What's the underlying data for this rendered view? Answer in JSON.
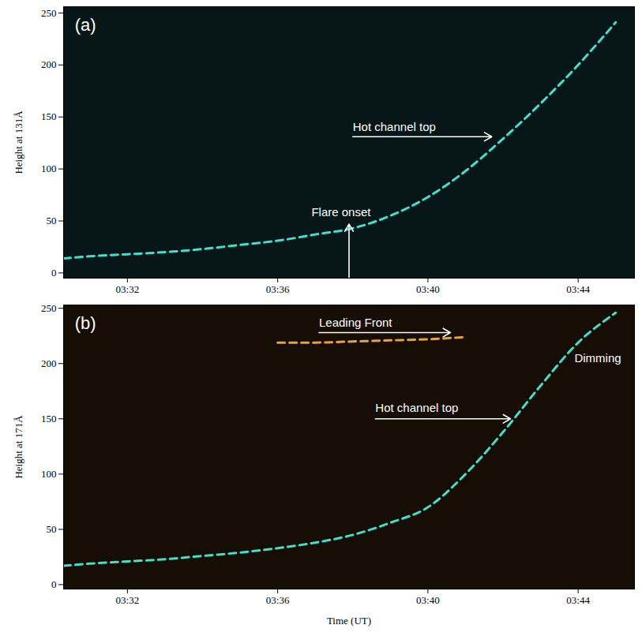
{
  "chart_data": [
    {
      "type": "line",
      "label": "(a)",
      "ylabel": "Height at 131Å",
      "xlim": [
        30.3,
        45.5
      ],
      "xticks": [
        {
          "value": 32,
          "label": "03:32"
        },
        {
          "value": 36,
          "label": "03:36"
        },
        {
          "value": 40,
          "label": "03:40"
        },
        {
          "value": 44,
          "label": "03:44"
        }
      ],
      "ylim": [
        -5,
        256
      ],
      "yticks": [
        0,
        50,
        100,
        150,
        200,
        250
      ],
      "series": [
        {
          "name": "Hot channel top",
          "color": "#40e0d0",
          "line_style": "dashed",
          "x": [
            30.3,
            31,
            32,
            33,
            34,
            35,
            36,
            37,
            38,
            39,
            40,
            41,
            42,
            43,
            44,
            45
          ],
          "values": [
            14,
            16,
            18,
            20,
            23,
            27,
            31,
            37,
            43,
            55,
            73,
            98,
            129,
            163,
            200,
            241
          ]
        }
      ],
      "annotations": [
        {
          "text": "(a)",
          "x": 30.6,
          "y": 238
        },
        {
          "text": "Flare onset",
          "x": 36.9,
          "y": 58
        },
        {
          "text": "Hot channel top",
          "x": 38.0,
          "y": 140
        }
      ],
      "arrows": [
        {
          "x1": 37.9,
          "y1": -5,
          "x2": 37.9,
          "y2": 47
        },
        {
          "x1": 38.0,
          "y1": 131,
          "x2": 41.7,
          "y2": 131
        }
      ]
    },
    {
      "type": "line",
      "label": "(b)",
      "xlabel": "Time (UT)",
      "ylabel": "Height at 171Å",
      "xlim": [
        30.3,
        45.5
      ],
      "xticks": [
        {
          "value": 32,
          "label": "03:32"
        },
        {
          "value": 36,
          "label": "03:36"
        },
        {
          "value": 40,
          "label": "03:40"
        },
        {
          "value": 44,
          "label": "03:44"
        }
      ],
      "ylim": [
        -4,
        253
      ],
      "yticks": [
        0,
        50,
        100,
        150,
        200,
        250
      ],
      "series": [
        {
          "name": "Hot channel top",
          "color": "#40e0d0",
          "line_style": "dashed",
          "x": [
            30.3,
            31,
            32,
            33,
            34,
            35,
            36,
            37,
            38,
            39,
            40,
            41,
            42,
            43,
            44,
            45
          ],
          "values": [
            17,
            19,
            21,
            23,
            26,
            29,
            33,
            38,
            45,
            56,
            70,
            100,
            138,
            180,
            219,
            246
          ]
        },
        {
          "name": "Leading Front",
          "color": "#e8a33c",
          "line_style": "dashed",
          "x": [
            36,
            37,
            38,
            39,
            40,
            41
          ],
          "values": [
            219,
            219,
            220,
            221,
            222,
            224
          ]
        }
      ],
      "annotations": [
        {
          "text": "(b)",
          "x": 30.6,
          "y": 236
        },
        {
          "text": "Leading Front",
          "x": 37.1,
          "y": 237
        },
        {
          "text": "Hot channel top",
          "x": 38.6,
          "y": 160
        },
        {
          "text": "Dimming",
          "x": 43.9,
          "y": 205
        }
      ],
      "arrows": [
        {
          "x1": 37.1,
          "y1": 228,
          "x2": 40.6,
          "y2": 228
        },
        {
          "x1": 38.6,
          "y1": 150,
          "x2": 42.2,
          "y2": 150
        }
      ]
    }
  ]
}
